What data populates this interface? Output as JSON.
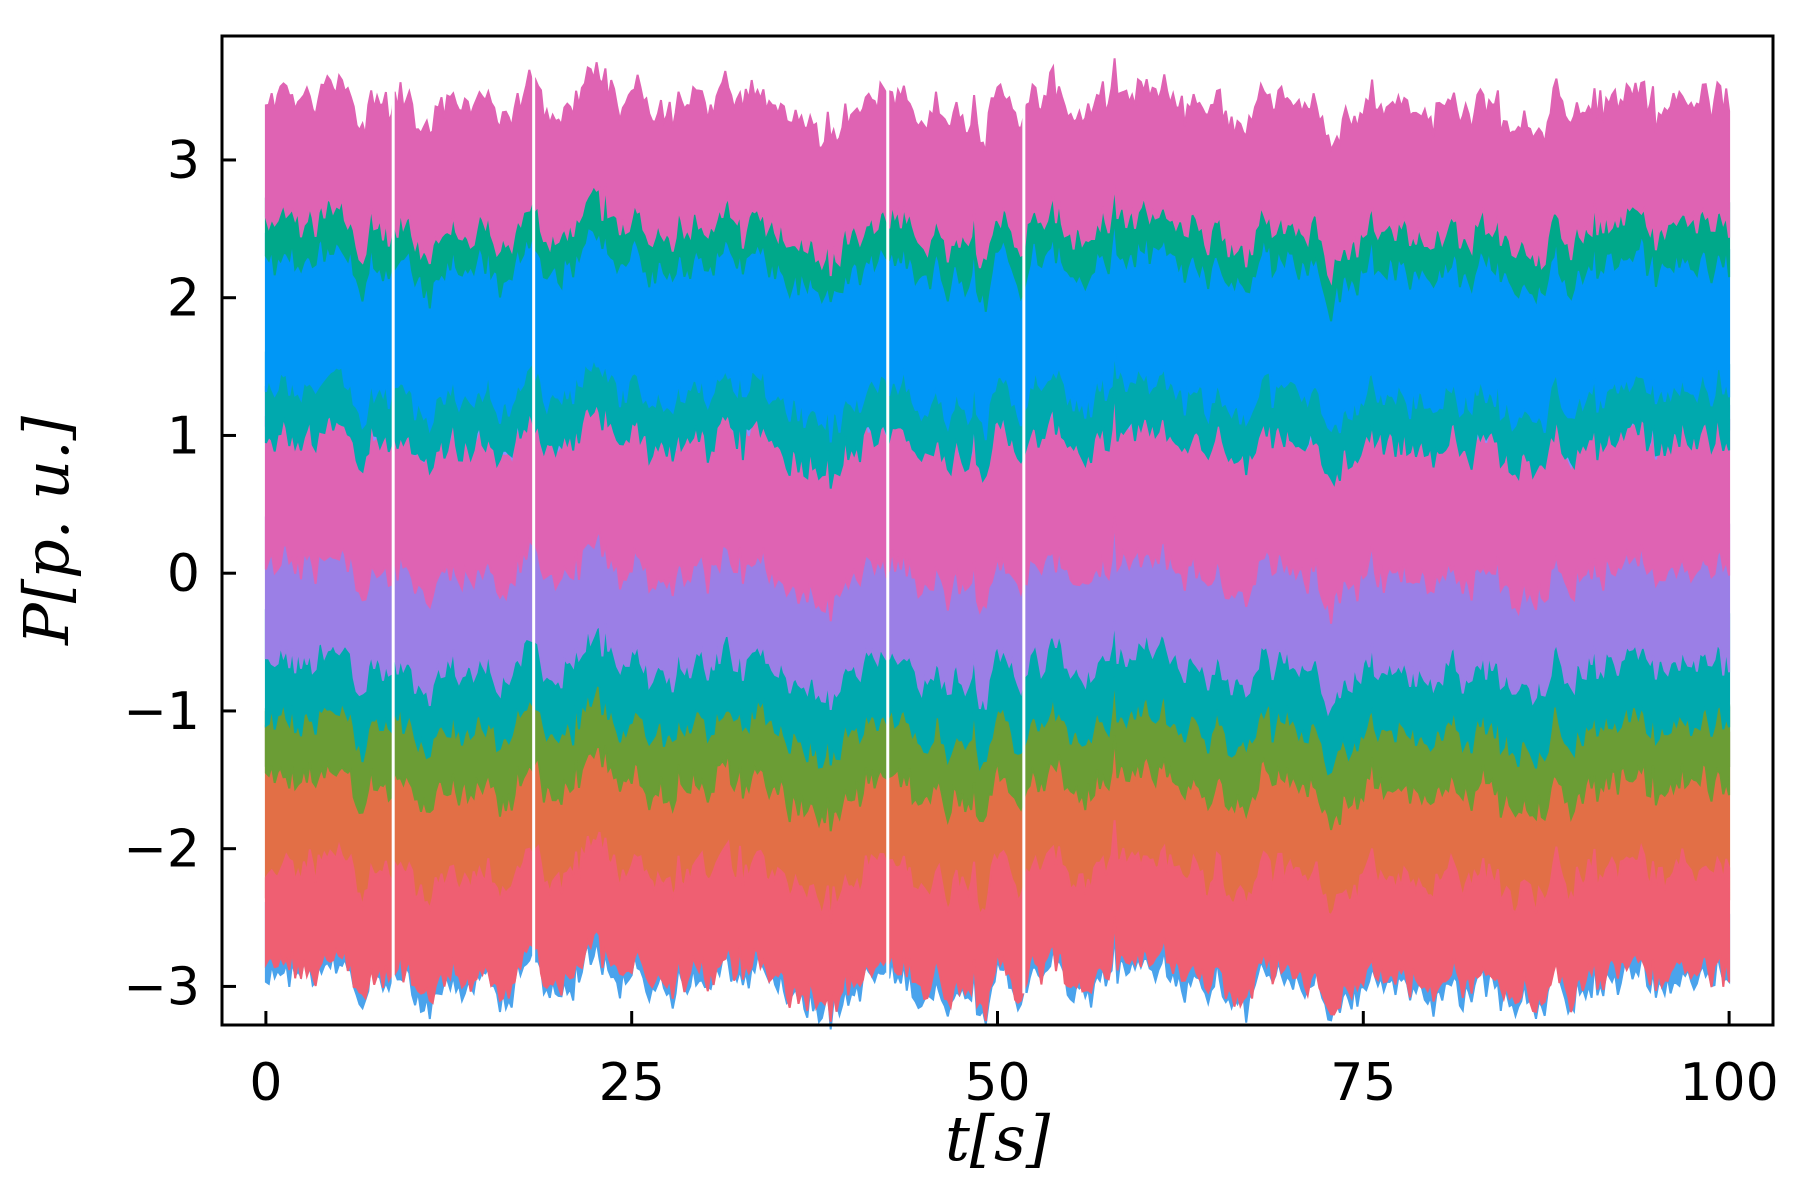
{
  "chart_data": {
    "type": "area",
    "title": "",
    "xlabel": "t[s]",
    "ylabel": "P[p. u.]",
    "xlim": [
      -3,
      103
    ],
    "ylim": [
      -3.28,
      3.9
    ],
    "x_ticks": [
      0,
      25,
      50,
      75,
      100
    ],
    "x_tick_labels": [
      "0",
      "25",
      "50",
      "75",
      "100"
    ],
    "y_ticks": [
      -3,
      -2,
      -1,
      0,
      1,
      2,
      3
    ],
    "y_tick_labels": [
      "−3",
      "−2",
      "−1",
      "0",
      "1",
      "2",
      "3"
    ],
    "grid": false,
    "legend": false,
    "x_start": 0,
    "x_end": 100,
    "gaps_x": [
      8.7,
      18.3,
      42.5,
      51.8
    ],
    "bands": [
      {
        "color": "#e26f46",
        "center": -1.8,
        "half_width": 0.6
      },
      {
        "color": "#4aa3ec",
        "center": -2.7,
        "half_width": 0.28
      },
      {
        "color": "#ef5f72",
        "center": -2.55,
        "half_width": 0.37
      },
      {
        "color": "#3a9c4a",
        "center": -1.2,
        "half_width": 0.2
      },
      {
        "color": "#6b9d35",
        "center": -1.25,
        "half_width": 0.3
      },
      {
        "color": "#00a9ae",
        "center": -0.7,
        "half_width": 0.42
      },
      {
        "color": "#9b7fe6",
        "center": -0.18,
        "half_width": 0.5
      },
      {
        "color": "#df63b3",
        "center": 0.55,
        "half_width": 0.55
      },
      {
        "color": "#8a8fff",
        "center": 1.15,
        "half_width": 0.12
      },
      {
        "color": "#00a9ae",
        "center": 1.25,
        "half_width": 0.3
      },
      {
        "color": "#0097f6",
        "center": 1.85,
        "half_width": 0.55
      },
      {
        "color": "#00a88a",
        "center": 2.45,
        "half_width": 0.22
      },
      {
        "color": "#df63b3",
        "center": 2.95,
        "half_width": 0.45
      }
    ]
  }
}
